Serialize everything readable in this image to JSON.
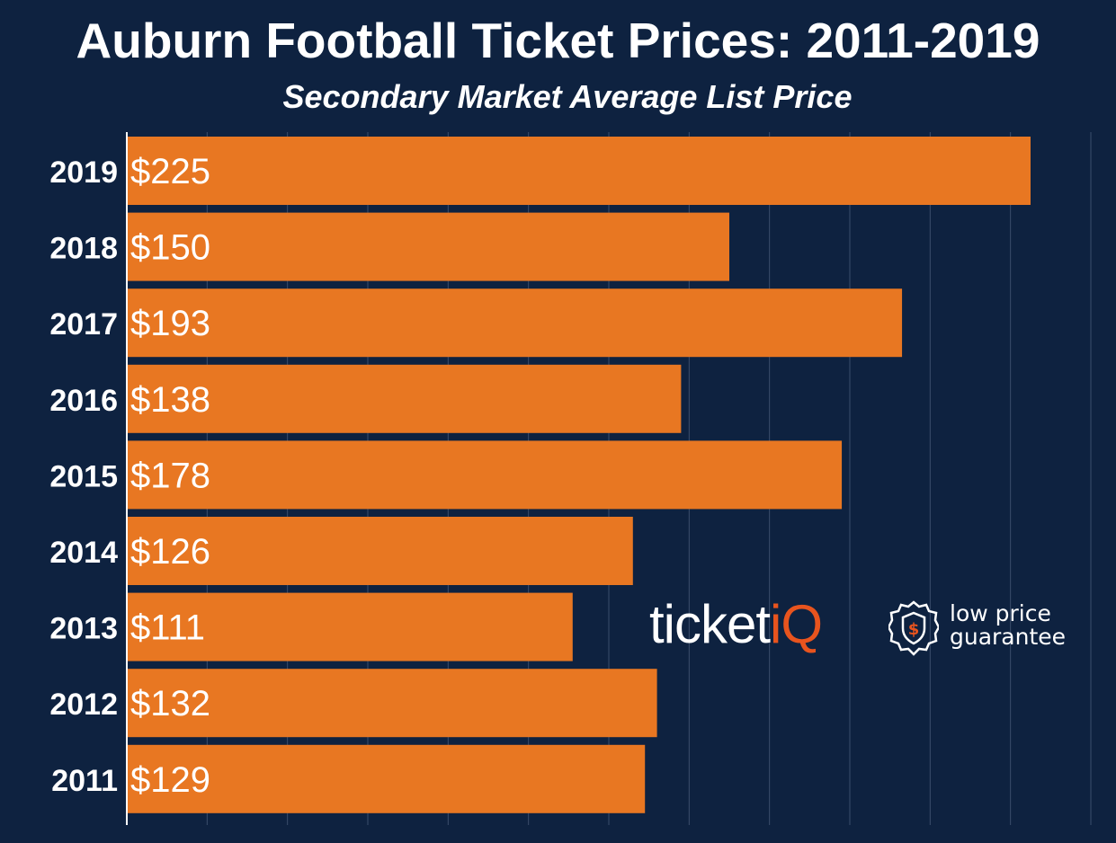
{
  "chart_data": {
    "type": "bar",
    "orientation": "horizontal",
    "title": "Auburn Football Ticket Prices: 2011-2019",
    "subtitle": "Secondary Market Average List Price",
    "categories": [
      "2019",
      "2018",
      "2017",
      "2016",
      "2015",
      "2014",
      "2013",
      "2012",
      "2011"
    ],
    "values": [
      225,
      150,
      193,
      138,
      178,
      126,
      111,
      132,
      129
    ],
    "value_labels": [
      "$225",
      "$150",
      "$193",
      "$138",
      "$178",
      "$126",
      "$111",
      "$132",
      "$129"
    ],
    "xlabel": "",
    "ylabel": "",
    "xlim": [
      0,
      240
    ],
    "grid": true,
    "bar_color": "#e87722",
    "background_color": "#0e2240",
    "grid_color": "#3b4d6b",
    "label_color": "#ffffff"
  },
  "watermark": {
    "brand_main": "ticket",
    "brand_accent": "iQ",
    "accent_color": "#e8541e",
    "tagline_line1": "low price",
    "tagline_line2": "guarantee",
    "icon": "shield-dollar-icon"
  }
}
